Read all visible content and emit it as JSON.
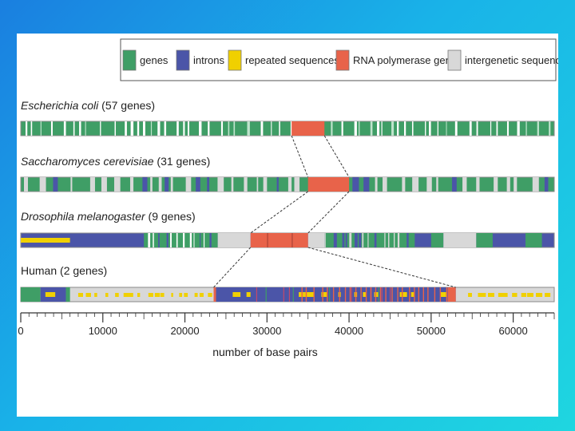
{
  "colors": {
    "genes": "#3f9e66",
    "introns": "#4b55a8",
    "repeated": "#f0d000",
    "rnapol": "#e8634a",
    "intergenic": "#d8d8d8",
    "connector": "#333333",
    "track_border": "#8a8a8a"
  },
  "legend": [
    {
      "key": "genes",
      "label": "genes",
      "color": "#3f9e66"
    },
    {
      "key": "introns",
      "label": "introns",
      "color": "#4b55a8"
    },
    {
      "key": "repeated",
      "label": "repeated sequences",
      "color": "#f0d000"
    },
    {
      "key": "rnapol",
      "label": "RNA polymerase gene",
      "color": "#e8634a"
    },
    {
      "key": "intergenic",
      "label": "intergenetic sequences",
      "color": "#d8d8d8"
    }
  ],
  "organisms": [
    {
      "key": "ecoli",
      "name": "Escherichia coli",
      "suffix": " (57 genes)",
      "italic": true,
      "base": "genes",
      "rna": [
        33000,
        37000
      ]
    },
    {
      "key": "yeast",
      "name": "Saccharomyces cerevisiae",
      "suffix": " (31 genes)",
      "italic": true,
      "base": "genes",
      "rna": [
        35000,
        40000
      ]
    },
    {
      "key": "fly",
      "name": "Drosophila melanogaster",
      "suffix": " (9 genes)",
      "italic": true,
      "base": "introns",
      "rna": [
        28000,
        35000
      ]
    },
    {
      "key": "human",
      "name": "Human",
      "suffix": " (2 genes)",
      "italic": false,
      "base": "intergenic",
      "rna": [
        23500,
        53000
      ]
    }
  ],
  "axis": {
    "min": 0,
    "max": 65000,
    "ticks": [
      0,
      10000,
      20000,
      30000,
      40000,
      50000,
      60000
    ],
    "tick_labels": [
      "0",
      "10000",
      "20000",
      "30000",
      "40000",
      "50000",
      "60000"
    ],
    "title": "number of base pairs"
  }
}
